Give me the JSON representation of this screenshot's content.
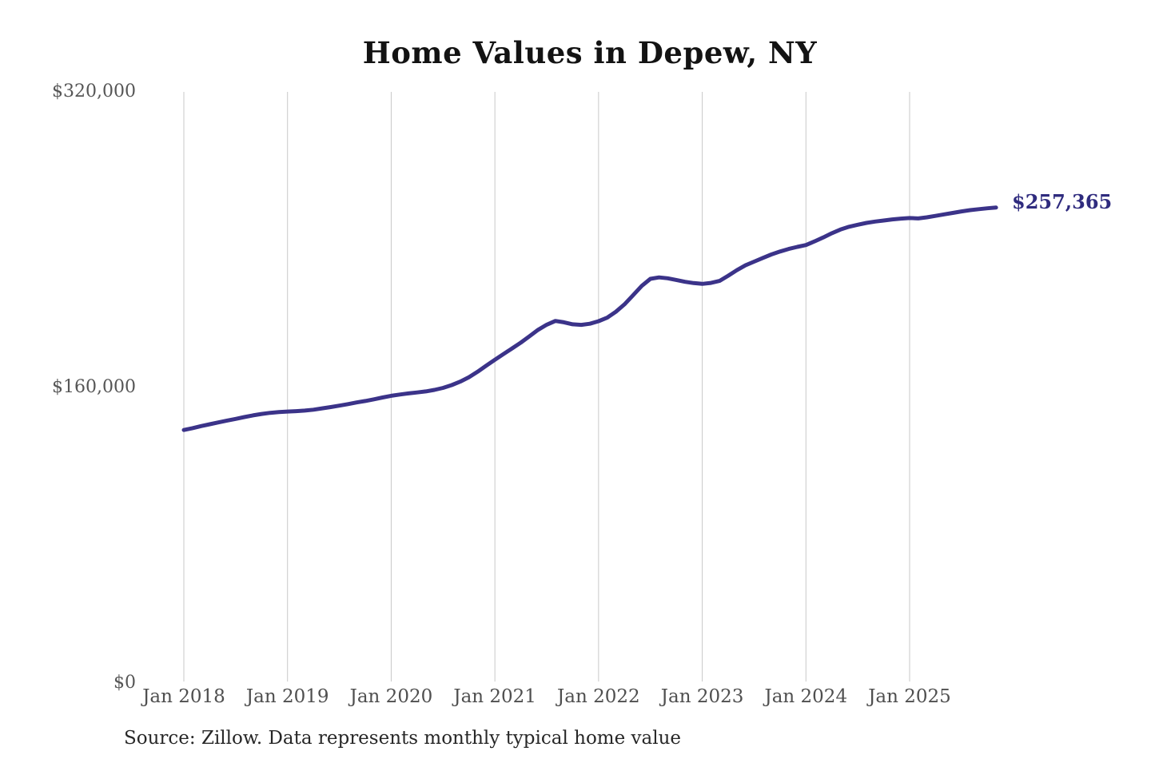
{
  "chart_data": {
    "type": "line",
    "title": "Home Values in Depew, NY",
    "source_note": "Source: Zillow. Data represents monthly typical home value",
    "latest_value_label": "$257,365",
    "latest_value": 257365,
    "ylim": [
      0,
      320000
    ],
    "y_tick_labels": [
      "$320,000",
      "$160,000",
      "$0"
    ],
    "y_tick_values": [
      320000,
      160000,
      0
    ],
    "x_tick_labels": [
      "Jan 2018",
      "Jan 2019",
      "Jan 2020",
      "Jan 2021",
      "Jan 2022",
      "Jan 2023",
      "Jan 2024",
      "Jan 2025"
    ],
    "x_range": {
      "start": "Jan 2018",
      "end": "Nov 2025",
      "interval": "monthly"
    },
    "grid": "vertical-gridlines-only",
    "legend": "none",
    "line_color": "#3b3389",
    "gridline_color": "#c9c9c9",
    "series": [
      {
        "name": "Monthly typical home value",
        "values": [
          137000,
          138000,
          139100,
          140100,
          141100,
          142100,
          143000,
          144000,
          144900,
          145700,
          146300,
          146700,
          147000,
          147200,
          147500,
          148000,
          148700,
          149400,
          150200,
          151000,
          151900,
          152700,
          153600,
          154600,
          155500,
          156200,
          156800,
          157300,
          157900,
          158700,
          159800,
          161300,
          163200,
          165600,
          168500,
          171800,
          175000,
          178100,
          181200,
          184300,
          187700,
          191200,
          194000,
          196000,
          195300,
          194200,
          193900,
          194500,
          195900,
          197800,
          201000,
          205000,
          210000,
          215000,
          218800,
          219600,
          219100,
          218200,
          217200,
          216500,
          216100,
          216600,
          217700,
          220500,
          223500,
          226100,
          228100,
          230100,
          232000,
          233600,
          235000,
          236100,
          237100,
          239100,
          241200,
          243500,
          245500,
          247000,
          248100,
          249100,
          249800,
          250400,
          251000,
          251400,
          251700,
          251500,
          252100,
          252900,
          253700,
          254500,
          255300,
          256000,
          256500,
          257000,
          257365
        ]
      }
    ]
  }
}
